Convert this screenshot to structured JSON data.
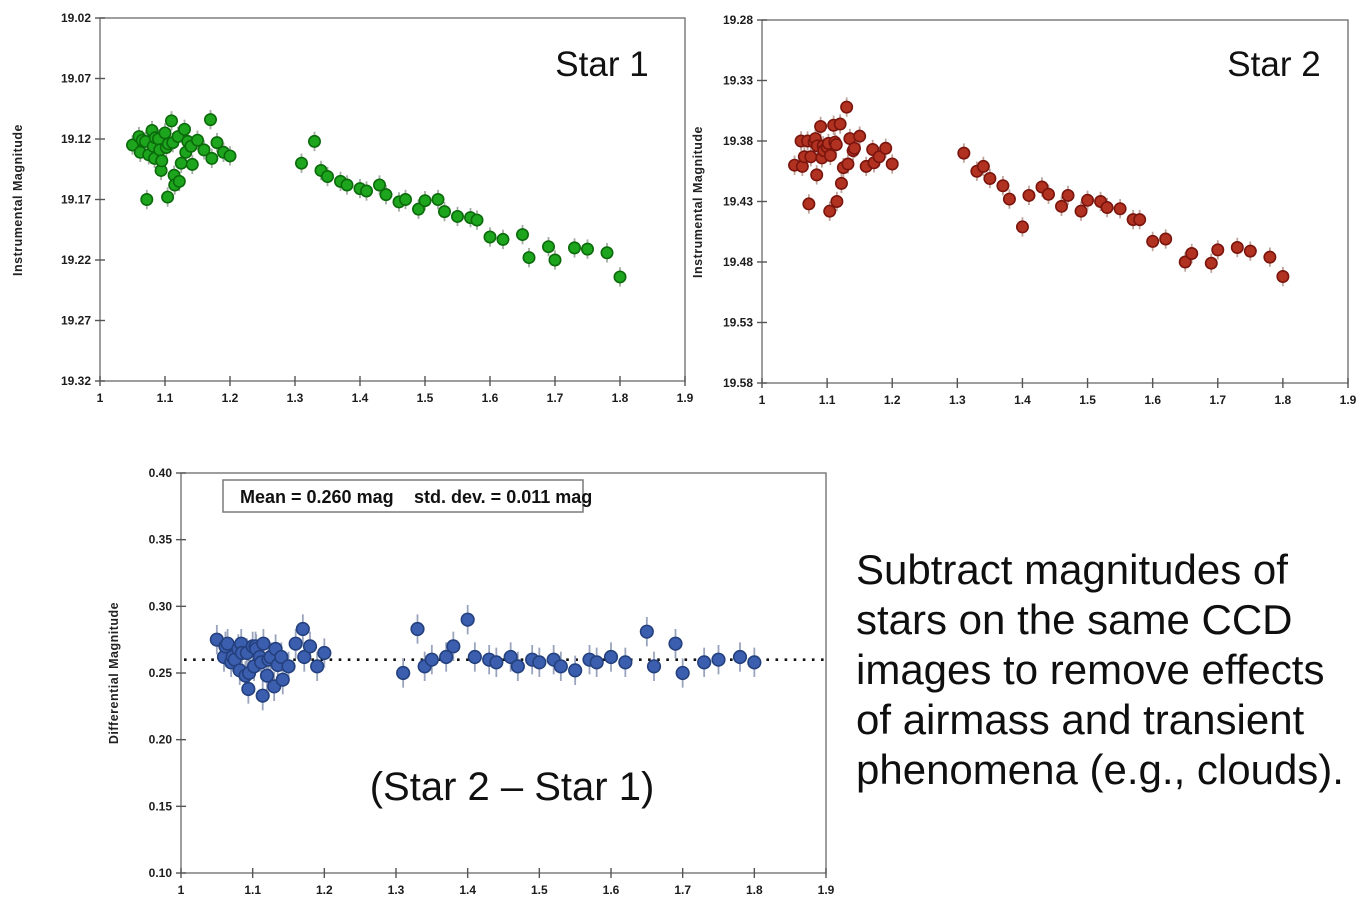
{
  "caption": {
    "text": "Subtract magnitudes of stars on the same CCD images to remove effects of airmass and transient phenomena (e.g., clouds).",
    "lines": [
      "Subtract magnitudes of",
      "stars on the same CCD",
      "images to remove effects",
      "of airmass and transient",
      "phenomena (e.g., clouds)."
    ]
  },
  "colors": {
    "background": "#ffffff",
    "frame": "#757575",
    "tick": "#555555",
    "star1_fill": "#1ea51e",
    "star1_edge": "#0b6b0b",
    "star2_fill": "#b23222",
    "star2_edge": "#7a150d",
    "diff_fill": "#3b5fae",
    "diff_edge": "#24407e",
    "mean_line": "#111111"
  },
  "chart_data": [
    {
      "id": "star1",
      "type": "scatter",
      "title": "Star 1",
      "xlabel": "",
      "ylabel": "Instrumental Magnitude",
      "xlim": [
        1,
        1.9
      ],
      "ylim": [
        19.02,
        19.32
      ],
      "y_top": 19.02,
      "y_bottom": 19.32,
      "x_ticks": [
        1,
        1.1,
        1.2,
        1.3,
        1.4,
        1.5,
        1.6,
        1.7,
        1.8,
        1.9
      ],
      "x_tick_labels": [
        "1",
        "1.1",
        "1.2",
        "1.3",
        "1.4",
        "1.5",
        "1.6",
        "1.7",
        "1.8",
        "1.9"
      ],
      "y_ticks": [
        19.02,
        19.07,
        19.12,
        19.17,
        19.22,
        19.27,
        19.32
      ],
      "y_tick_labels": [
        "19.02",
        "19.07",
        "19.12",
        "19.17",
        "19.22",
        "19.27",
        "19.32"
      ],
      "grid": false,
      "legend": "none",
      "marker": {
        "fill": "#1ea51e",
        "edge": "#0b6b0b",
        "radius": 5.7
      },
      "error_bar": {
        "size": 0.008,
        "color": "#a3ada3"
      },
      "points": [
        [
          1.05,
          19.125
        ],
        [
          1.06,
          19.118
        ],
        [
          1.062,
          19.131
        ],
        [
          1.065,
          19.121
        ],
        [
          1.07,
          19.122
        ],
        [
          1.072,
          19.17
        ],
        [
          1.075,
          19.133
        ],
        [
          1.08,
          19.113
        ],
        [
          1.082,
          19.126
        ],
        [
          1.084,
          19.136
        ],
        [
          1.085,
          19.119
        ],
        [
          1.09,
          19.12
        ],
        [
          1.092,
          19.129
        ],
        [
          1.094,
          19.146
        ],
        [
          1.095,
          19.138
        ],
        [
          1.1,
          19.115
        ],
        [
          1.102,
          19.127
        ],
        [
          1.104,
          19.168
        ],
        [
          1.105,
          19.124
        ],
        [
          1.11,
          19.105
        ],
        [
          1.112,
          19.123
        ],
        [
          1.114,
          19.15
        ],
        [
          1.115,
          19.158
        ],
        [
          1.12,
          19.118
        ],
        [
          1.122,
          19.155
        ],
        [
          1.125,
          19.14
        ],
        [
          1.13,
          19.112
        ],
        [
          1.132,
          19.131
        ],
        [
          1.135,
          19.122
        ],
        [
          1.14,
          19.126
        ],
        [
          1.142,
          19.141
        ],
        [
          1.15,
          19.121
        ],
        [
          1.16,
          19.129
        ],
        [
          1.17,
          19.104
        ],
        [
          1.172,
          19.136
        ],
        [
          1.18,
          19.123
        ],
        [
          1.19,
          19.131
        ],
        [
          1.2,
          19.134
        ],
        [
          1.31,
          19.14
        ],
        [
          1.33,
          19.122
        ],
        [
          1.34,
          19.146
        ],
        [
          1.35,
          19.151
        ],
        [
          1.37,
          19.155
        ],
        [
          1.38,
          19.158
        ],
        [
          1.4,
          19.161
        ],
        [
          1.41,
          19.163
        ],
        [
          1.43,
          19.158
        ],
        [
          1.44,
          19.166
        ],
        [
          1.46,
          19.172
        ],
        [
          1.47,
          19.17
        ],
        [
          1.49,
          19.178
        ],
        [
          1.5,
          19.171
        ],
        [
          1.52,
          19.17
        ],
        [
          1.53,
          19.18
        ],
        [
          1.55,
          19.184
        ],
        [
          1.57,
          19.185
        ],
        [
          1.58,
          19.187
        ],
        [
          1.6,
          19.201
        ],
        [
          1.62,
          19.203
        ],
        [
          1.65,
          19.199
        ],
        [
          1.66,
          19.218
        ],
        [
          1.69,
          19.209
        ],
        [
          1.7,
          19.22
        ],
        [
          1.73,
          19.21
        ],
        [
          1.75,
          19.211
        ],
        [
          1.78,
          19.214
        ],
        [
          1.8,
          19.234
        ]
      ]
    },
    {
      "id": "star2",
      "type": "scatter",
      "title": "Star 2",
      "xlabel": "",
      "ylabel": "Instrumental Magnitude",
      "xlim": [
        1,
        1.9
      ],
      "ylim": [
        19.28,
        19.58
      ],
      "y_top": 19.28,
      "y_bottom": 19.58,
      "x_ticks": [
        1,
        1.1,
        1.2,
        1.3,
        1.4,
        1.5,
        1.6,
        1.7,
        1.8,
        1.9
      ],
      "x_tick_labels": [
        "1",
        "1.1",
        "1.2",
        "1.3",
        "1.4",
        "1.5",
        "1.6",
        "1.7",
        "1.8",
        "1.9"
      ],
      "y_ticks": [
        19.28,
        19.33,
        19.38,
        19.43,
        19.48,
        19.53,
        19.58
      ],
      "y_tick_labels": [
        "19.28",
        "19.33",
        "19.38",
        "19.43",
        "19.48",
        "19.53",
        "19.58"
      ],
      "grid": false,
      "legend": "none",
      "marker": {
        "fill": "#b23222",
        "edge": "#7a150d",
        "radius": 5.7
      },
      "error_bar": {
        "size": 0.008,
        "color": "#bfa49c"
      },
      "points": [
        [
          1.05,
          19.4
        ],
        [
          1.06,
          19.38
        ],
        [
          1.062,
          19.401
        ],
        [
          1.065,
          19.393
        ],
        [
          1.07,
          19.38
        ],
        [
          1.072,
          19.432
        ],
        [
          1.075,
          19.393
        ],
        [
          1.08,
          19.381
        ],
        [
          1.082,
          19.378
        ],
        [
          1.084,
          19.408
        ],
        [
          1.085,
          19.384
        ],
        [
          1.09,
          19.368
        ],
        [
          1.092,
          19.394
        ],
        [
          1.094,
          19.384
        ],
        [
          1.095,
          19.388
        ],
        [
          1.1,
          19.385
        ],
        [
          1.102,
          19.382
        ],
        [
          1.104,
          19.438
        ],
        [
          1.105,
          19.392
        ],
        [
          1.11,
          19.367
        ],
        [
          1.112,
          19.381
        ],
        [
          1.114,
          19.383
        ],
        [
          1.115,
          19.43
        ],
        [
          1.12,
          19.366
        ],
        [
          1.122,
          19.415
        ],
        [
          1.125,
          19.402
        ],
        [
          1.13,
          19.352
        ],
        [
          1.132,
          19.399
        ],
        [
          1.135,
          19.378
        ],
        [
          1.14,
          19.388
        ],
        [
          1.142,
          19.386
        ],
        [
          1.15,
          19.376
        ],
        [
          1.16,
          19.401
        ],
        [
          1.17,
          19.387
        ],
        [
          1.172,
          19.398
        ],
        [
          1.18,
          19.393
        ],
        [
          1.19,
          19.386
        ],
        [
          1.2,
          19.399
        ],
        [
          1.31,
          19.39
        ],
        [
          1.33,
          19.405
        ],
        [
          1.34,
          19.401
        ],
        [
          1.35,
          19.411
        ],
        [
          1.37,
          19.417
        ],
        [
          1.38,
          19.428
        ],
        [
          1.4,
          19.451
        ],
        [
          1.41,
          19.425
        ],
        [
          1.43,
          19.418
        ],
        [
          1.44,
          19.424
        ],
        [
          1.46,
          19.434
        ],
        [
          1.47,
          19.425
        ],
        [
          1.49,
          19.438
        ],
        [
          1.5,
          19.429
        ],
        [
          1.52,
          19.43
        ],
        [
          1.53,
          19.435
        ],
        [
          1.55,
          19.436
        ],
        [
          1.57,
          19.445
        ],
        [
          1.58,
          19.445
        ],
        [
          1.6,
          19.463
        ],
        [
          1.62,
          19.461
        ],
        [
          1.65,
          19.48
        ],
        [
          1.66,
          19.473
        ],
        [
          1.69,
          19.481
        ],
        [
          1.7,
          19.47
        ],
        [
          1.73,
          19.468
        ],
        [
          1.75,
          19.471
        ],
        [
          1.78,
          19.476
        ],
        [
          1.8,
          19.492
        ]
      ]
    },
    {
      "id": "differential",
      "type": "scatter",
      "title": "(Star 2 – Star 1)",
      "xlabel": "",
      "ylabel": "Differential Magnitude",
      "xlim": [
        1,
        1.9
      ],
      "ylim": [
        0.1,
        0.4
      ],
      "y_top": 0.4,
      "y_bottom": 0.1,
      "x_ticks": [
        1,
        1.1,
        1.2,
        1.3,
        1.4,
        1.5,
        1.6,
        1.7,
        1.8,
        1.9
      ],
      "x_tick_labels": [
        "1",
        "1.1",
        "1.2",
        "1.3",
        "1.4",
        "1.5",
        "1.6",
        "1.7",
        "1.8",
        "1.9"
      ],
      "y_ticks": [
        0.4,
        0.35,
        0.3,
        0.25,
        0.2,
        0.15,
        0.1
      ],
      "y_tick_labels": [
        "0.40",
        "0.35",
        "0.30",
        "0.25",
        "0.20",
        "0.15",
        "0.10"
      ],
      "grid": false,
      "legend": "none",
      "mean_line": 0.26,
      "annotation": {
        "left": "Mean = 0.260 mag",
        "right": "std. dev. = 0.011 mag"
      },
      "stats": {
        "mean_mag": 0.26,
        "std_dev_mag": 0.011
      },
      "marker": {
        "fill": "#3b5fae",
        "edge": "#24407e",
        "radius": 6.3
      },
      "error_bar": {
        "size": 0.011,
        "color": "#9aa4bd"
      },
      "points": [
        [
          1.05,
          0.275
        ],
        [
          1.06,
          0.262
        ],
        [
          1.062,
          0.27
        ],
        [
          1.065,
          0.272
        ],
        [
          1.07,
          0.258
        ],
        [
          1.072,
          0.262
        ],
        [
          1.075,
          0.26
        ],
        [
          1.08,
          0.268
        ],
        [
          1.082,
          0.252
        ],
        [
          1.084,
          0.272
        ],
        [
          1.085,
          0.265
        ],
        [
          1.09,
          0.248
        ],
        [
          1.092,
          0.265
        ],
        [
          1.094,
          0.238
        ],
        [
          1.095,
          0.25
        ],
        [
          1.1,
          0.27
        ],
        [
          1.102,
          0.255
        ],
        [
          1.104,
          0.27
        ],
        [
          1.105,
          0.268
        ],
        [
          1.11,
          0.262
        ],
        [
          1.112,
          0.258
        ],
        [
          1.114,
          0.233
        ],
        [
          1.115,
          0.272
        ],
        [
          1.12,
          0.248
        ],
        [
          1.122,
          0.26
        ],
        [
          1.125,
          0.262
        ],
        [
          1.13,
          0.24
        ],
        [
          1.132,
          0.268
        ],
        [
          1.135,
          0.256
        ],
        [
          1.14,
          0.262
        ],
        [
          1.142,
          0.245
        ],
        [
          1.15,
          0.255
        ],
        [
          1.16,
          0.272
        ],
        [
          1.17,
          0.283
        ],
        [
          1.172,
          0.262
        ],
        [
          1.18,
          0.27
        ],
        [
          1.19,
          0.255
        ],
        [
          1.2,
          0.265
        ],
        [
          1.31,
          0.25
        ],
        [
          1.33,
          0.283
        ],
        [
          1.34,
          0.255
        ],
        [
          1.35,
          0.26
        ],
        [
          1.37,
          0.262
        ],
        [
          1.38,
          0.27
        ],
        [
          1.4,
          0.29
        ],
        [
          1.41,
          0.262
        ],
        [
          1.43,
          0.26
        ],
        [
          1.44,
          0.258
        ],
        [
          1.46,
          0.262
        ],
        [
          1.47,
          0.255
        ],
        [
          1.49,
          0.26
        ],
        [
          1.5,
          0.258
        ],
        [
          1.52,
          0.26
        ],
        [
          1.53,
          0.255
        ],
        [
          1.55,
          0.252
        ],
        [
          1.57,
          0.26
        ],
        [
          1.58,
          0.258
        ],
        [
          1.6,
          0.262
        ],
        [
          1.62,
          0.258
        ],
        [
          1.65,
          0.281
        ],
        [
          1.66,
          0.255
        ],
        [
          1.69,
          0.272
        ],
        [
          1.7,
          0.25
        ],
        [
          1.73,
          0.258
        ],
        [
          1.75,
          0.26
        ],
        [
          1.78,
          0.262
        ],
        [
          1.8,
          0.258
        ]
      ]
    }
  ]
}
